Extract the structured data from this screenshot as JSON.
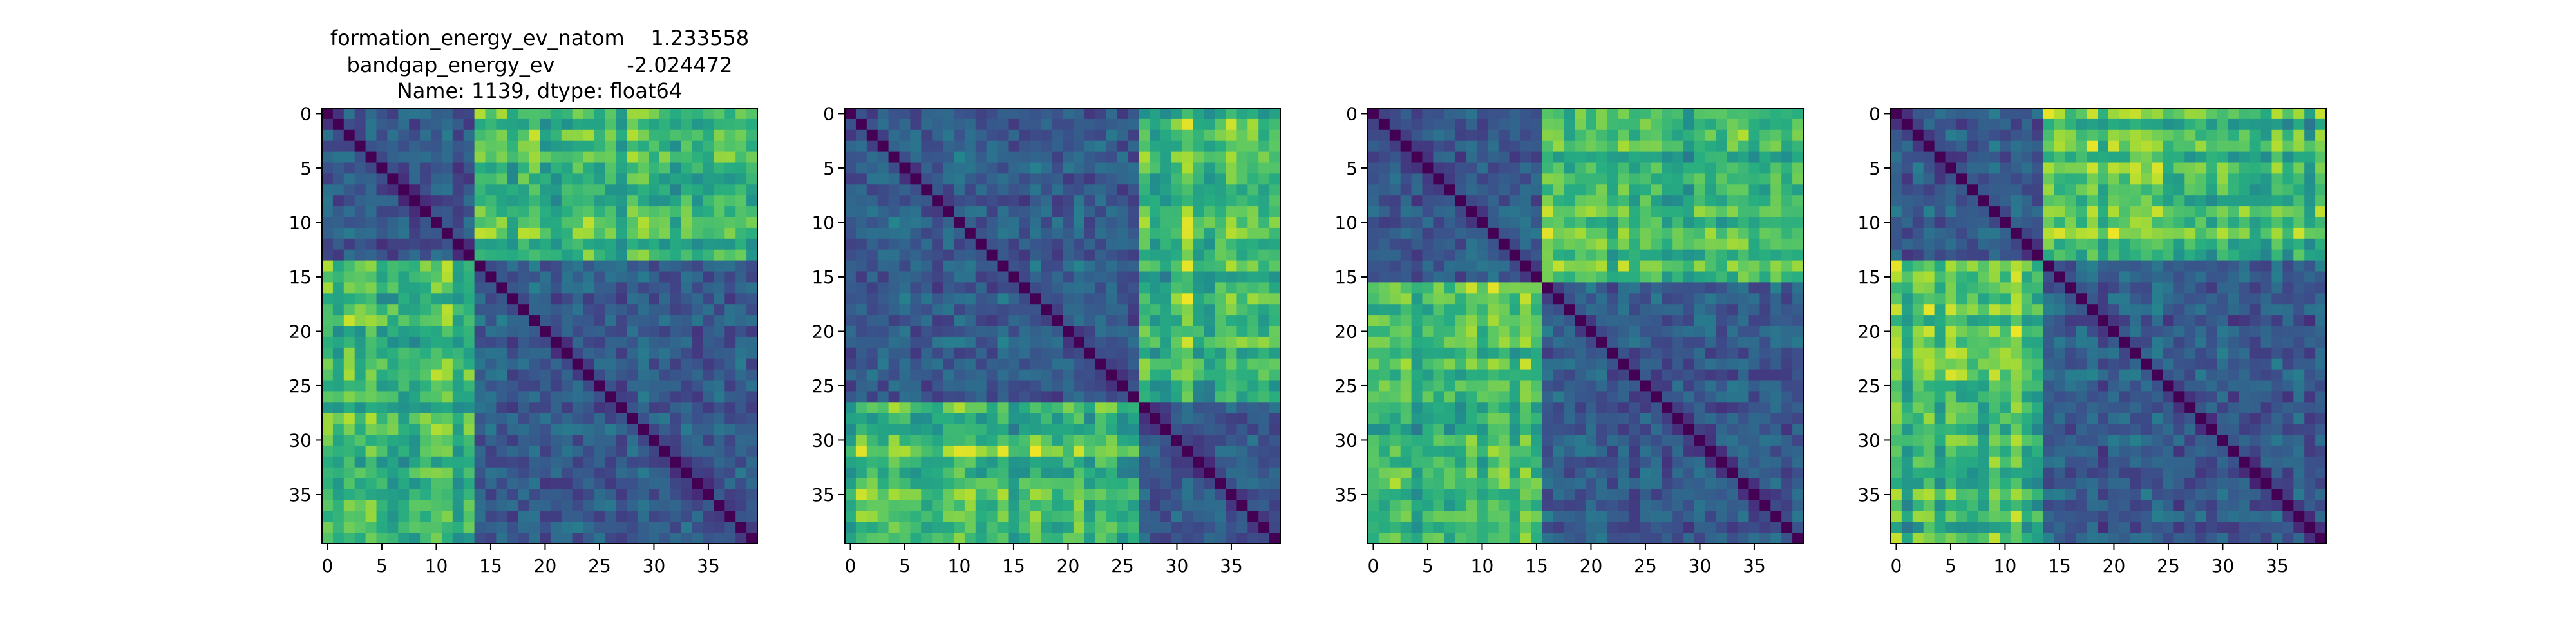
{
  "chart_data": [
    {
      "type": "heatmap",
      "title_lines": [
        "formation_energy_ev_natom    1.233558",
        "bandgap_energy_ev           -2.024472",
        "Name: 1139, dtype: float64"
      ],
      "size": 40,
      "colormap": "viridis",
      "blocks": [
        [
          0,
          14
        ],
        [
          14,
          40
        ]
      ],
      "x_ticks": [
        "0",
        "5",
        "10",
        "15",
        "20",
        "25",
        "30",
        "35"
      ],
      "y_ticks": [
        "0",
        "5",
        "10",
        "15",
        "20",
        "25",
        "30",
        "35"
      ],
      "grid": false
    },
    {
      "type": "heatmap",
      "title_lines": [],
      "size": 40,
      "colormap": "viridis",
      "blocks": [
        [
          0,
          27
        ],
        [
          27,
          40
        ]
      ],
      "x_ticks": [
        "0",
        "5",
        "10",
        "15",
        "20",
        "25",
        "30",
        "35"
      ],
      "y_ticks": [
        "0",
        "5",
        "10",
        "15",
        "20",
        "25",
        "30",
        "35"
      ],
      "grid": false
    },
    {
      "type": "heatmap",
      "title_lines": [],
      "size": 40,
      "colormap": "viridis",
      "blocks": [
        [
          0,
          16
        ],
        [
          16,
          40
        ]
      ],
      "x_ticks": [
        "0",
        "5",
        "10",
        "15",
        "20",
        "25",
        "30",
        "35"
      ],
      "y_ticks": [
        "0",
        "5",
        "10",
        "15",
        "20",
        "25",
        "30",
        "35"
      ],
      "grid": false
    },
    {
      "type": "heatmap",
      "title_lines": [],
      "size": 40,
      "colormap": "viridis",
      "blocks": [
        [
          0,
          14
        ],
        [
          14,
          40
        ]
      ],
      "x_ticks": [
        "0",
        "5",
        "10",
        "15",
        "20",
        "25",
        "30",
        "35"
      ],
      "y_ticks": [
        "0",
        "5",
        "10",
        "15",
        "20",
        "25",
        "30",
        "35"
      ],
      "grid": false
    }
  ]
}
